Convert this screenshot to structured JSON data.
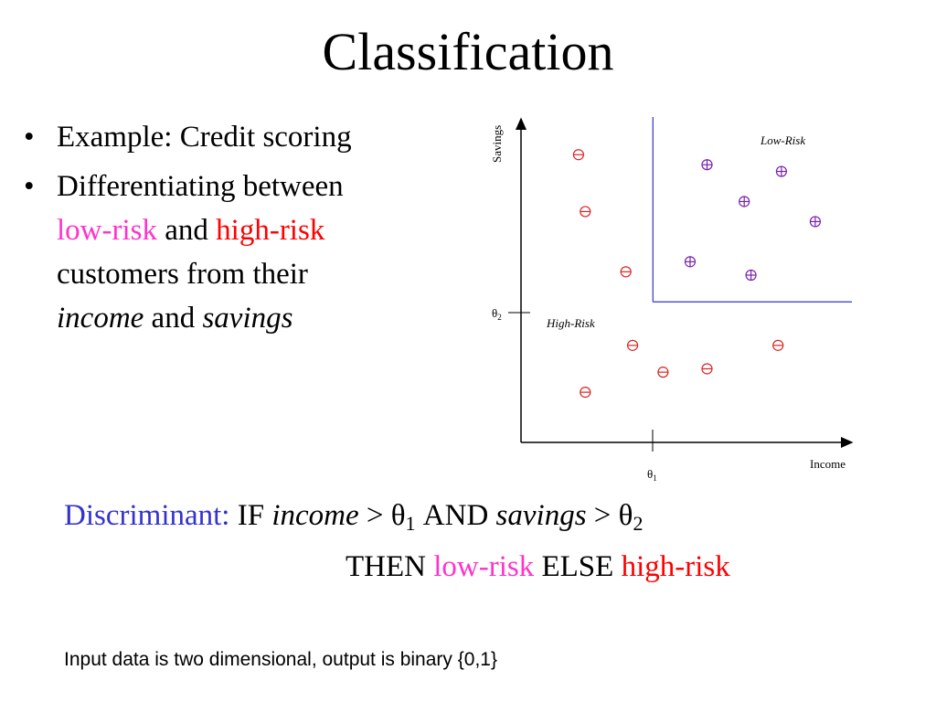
{
  "title": "Classification",
  "bullets": {
    "item1": "Example: Credit scoring",
    "item2_part1": "Differentiating between",
    "item2_lowrisk": "low-risk",
    "item2_and": "and",
    "item2_highrisk": "high-risk",
    "item2_part2": "customers from their",
    "item2_income": "income",
    "item2_and2": "and",
    "item2_savings": "savings",
    "bullet_char": "•"
  },
  "colors": {
    "low_risk_text": "#ff33cc",
    "high_risk_text": "#ff0000",
    "discriminant_label": "#3333cc",
    "high_risk_marker": "#dd2222",
    "low_risk_marker": "#7722aa",
    "boundary": "#3333cc"
  },
  "chart_data": {
    "type": "scatter",
    "xlabel": "Income",
    "ylabel": "Savings",
    "region_labels": {
      "low": "Low-Risk",
      "high": "High-Risk"
    },
    "thresholds": {
      "theta1_label": "θ",
      "theta1_sub": "1",
      "theta2_label": "θ",
      "theta2_sub": "2",
      "theta1": 0.39,
      "theta2": 0.42
    },
    "xlim": [
      0,
      1
    ],
    "ylim": [
      0,
      1
    ],
    "series": [
      {
        "name": "High-Risk",
        "marker": "⊖",
        "points": [
          [
            0.17,
            0.86
          ],
          [
            0.19,
            0.69
          ],
          [
            0.31,
            0.51
          ],
          [
            0.33,
            0.29
          ],
          [
            0.42,
            0.21
          ],
          [
            0.55,
            0.22
          ],
          [
            0.76,
            0.29
          ],
          [
            0.19,
            0.15
          ]
        ]
      },
      {
        "name": "Low-Risk",
        "marker": "⊕",
        "points": [
          [
            0.55,
            0.83
          ],
          [
            0.66,
            0.72
          ],
          [
            0.77,
            0.81
          ],
          [
            0.87,
            0.66
          ],
          [
            0.5,
            0.54
          ],
          [
            0.68,
            0.5
          ]
        ]
      }
    ]
  },
  "discriminant": {
    "label": "Discriminant:",
    "if": "IF",
    "income": "income",
    "gt1": ">",
    "theta": "θ",
    "sub1": "1",
    "and": "AND",
    "savings": "savings",
    "gt2": ">",
    "sub2": "2",
    "then": "THEN",
    "lowrisk": "low-risk",
    "else": "ELSE",
    "highrisk": "high-risk"
  },
  "note": "Input data is two dimensional, output is binary {0,1}"
}
